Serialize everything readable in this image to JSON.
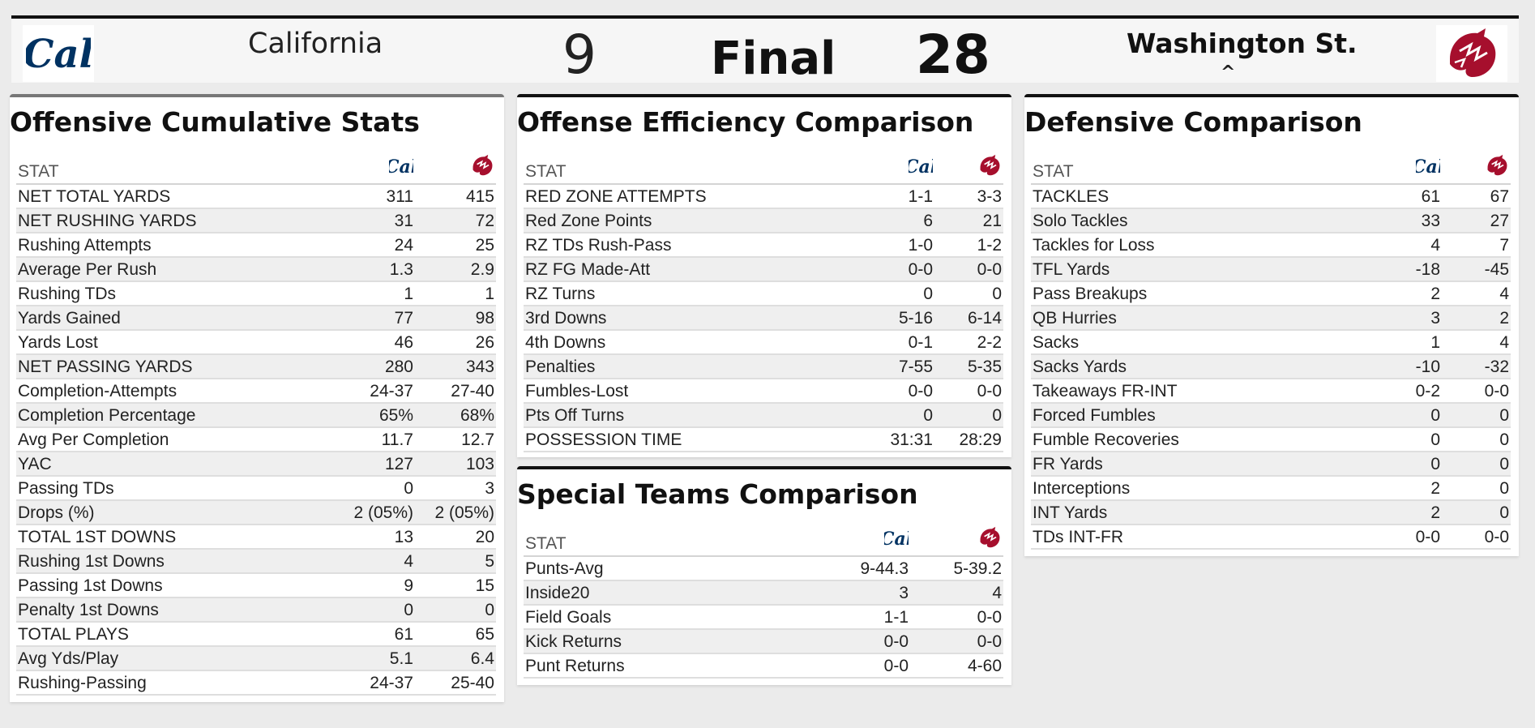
{
  "colors": {
    "cal_blue": "#003262",
    "wsu_crimson": "#a60f2d",
    "card_border": "#111111"
  },
  "header": {
    "home_logo": "cal-logo",
    "home_logo_text": "Cal",
    "home_team": "California",
    "home_score": "9",
    "status": "Final",
    "away_score": "28",
    "away_team": "Washington St.",
    "away_indicator": "^",
    "away_logo": "wsu-cougar-logo"
  },
  "offensive": {
    "title": "Offensive Cumulative Stats",
    "stat_header": "STAT",
    "rows": [
      [
        "NET TOTAL YARDS",
        "311",
        "415"
      ],
      [
        "NET RUSHING YARDS",
        "31",
        "72"
      ],
      [
        "Rushing Attempts",
        "24",
        "25"
      ],
      [
        "Average Per Rush",
        "1.3",
        "2.9"
      ],
      [
        "Rushing TDs",
        "1",
        "1"
      ],
      [
        "Yards Gained",
        "77",
        "98"
      ],
      [
        "Yards Lost",
        "46",
        "26"
      ],
      [
        "NET PASSING YARDS",
        "280",
        "343"
      ],
      [
        "Completion-Attempts",
        "24-37",
        "27-40"
      ],
      [
        "Completion Percentage",
        "65%",
        "68%"
      ],
      [
        "Avg Per Completion",
        "11.7",
        "12.7"
      ],
      [
        "YAC",
        "127",
        "103"
      ],
      [
        "Passing TDs",
        "0",
        "3"
      ],
      [
        "Drops (%)",
        "2 (05%)",
        "2 (05%)"
      ],
      [
        "TOTAL 1ST DOWNS",
        "13",
        "20"
      ],
      [
        "Rushing 1st Downs",
        "4",
        "5"
      ],
      [
        "Passing 1st Downs",
        "9",
        "15"
      ],
      [
        "Penalty 1st Downs",
        "0",
        "0"
      ],
      [
        "TOTAL PLAYS",
        "61",
        "65"
      ],
      [
        "Avg Yds/Play",
        "5.1",
        "6.4"
      ],
      [
        "Rushing-Passing",
        "24-37",
        "25-40"
      ]
    ]
  },
  "efficiency": {
    "title": "Offense Efficiency Comparison",
    "stat_header": "STAT",
    "rows": [
      [
        "RED ZONE ATTEMPTS",
        "1-1",
        "3-3"
      ],
      [
        "Red Zone Points",
        "6",
        "21"
      ],
      [
        "RZ TDs Rush-Pass",
        "1-0",
        "1-2"
      ],
      [
        "RZ FG Made-Att",
        "0-0",
        "0-0"
      ],
      [
        "RZ Turns",
        "0",
        "0"
      ],
      [
        "3rd Downs",
        "5-16",
        "6-14"
      ],
      [
        "4th Downs",
        "0-1",
        "2-2"
      ],
      [
        "Penalties",
        "7-55",
        "5-35"
      ],
      [
        "Fumbles-Lost",
        "0-0",
        "0-0"
      ],
      [
        "Pts Off Turns",
        "0",
        "0"
      ],
      [
        "POSSESSION TIME",
        "31:31",
        "28:29"
      ]
    ]
  },
  "special": {
    "title": "Special Teams Comparison",
    "stat_header": "STAT",
    "rows": [
      [
        "Punts-Avg",
        "9-44.3",
        "5-39.2"
      ],
      [
        "Inside20",
        "3",
        "4"
      ],
      [
        "Field Goals",
        "1-1",
        "0-0"
      ],
      [
        "Kick Returns",
        "0-0",
        "0-0"
      ],
      [
        "Punt Returns",
        "0-0",
        "4-60"
      ]
    ]
  },
  "defensive": {
    "title": "Defensive Comparison",
    "stat_header": "STAT",
    "rows": [
      [
        "TACKLES",
        "61",
        "67"
      ],
      [
        "Solo Tackles",
        "33",
        "27"
      ],
      [
        "Tackles for Loss",
        "4",
        "7"
      ],
      [
        "TFL Yards",
        "-18",
        "-45"
      ],
      [
        "Pass Breakups",
        "2",
        "4"
      ],
      [
        "QB Hurries",
        "3",
        "2"
      ],
      [
        "Sacks",
        "1",
        "4"
      ],
      [
        "Sacks Yards",
        "-10",
        "-32"
      ],
      [
        "Takeaways FR-INT",
        "0-2",
        "0-0"
      ],
      [
        "Forced Fumbles",
        "0",
        "0"
      ],
      [
        "Fumble Recoveries",
        "0",
        "0"
      ],
      [
        "FR Yards",
        "0",
        "0"
      ],
      [
        "Interceptions",
        "2",
        "0"
      ],
      [
        "INT Yards",
        "2",
        "0"
      ],
      [
        "TDs INT-FR",
        "0-0",
        "0-0"
      ]
    ]
  }
}
